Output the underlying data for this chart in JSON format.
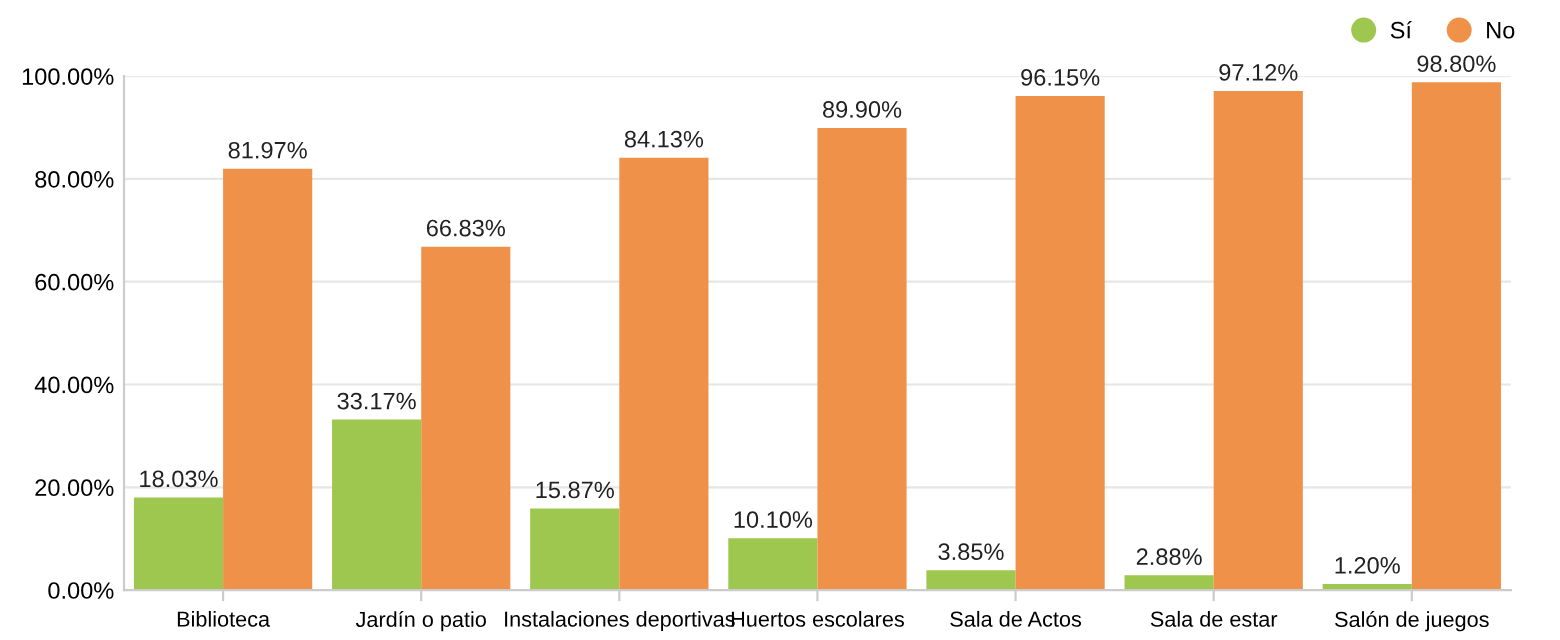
{
  "chart_data": {
    "type": "bar",
    "categories": [
      "Biblioteca",
      "Jardín o patio",
      "Instalaciones deportivas",
      "Huertos escolares",
      "Sala de Actos",
      "Sala de estar",
      "Salón de juegos"
    ],
    "series": [
      {
        "name": "Sí",
        "color": "#9dc74f",
        "values": [
          18.03,
          33.17,
          15.87,
          10.1,
          3.85,
          2.88,
          1.2
        ],
        "value_labels": [
          "18.03%",
          "33.17%",
          "15.87%",
          "10.10%",
          "3.85%",
          "2.88%",
          "1.20%"
        ]
      },
      {
        "name": "No",
        "color": "#f0914a",
        "values": [
          81.97,
          66.83,
          84.13,
          89.9,
          96.15,
          97.12,
          98.8
        ],
        "value_labels": [
          "81.97%",
          "66.83%",
          "84.13%",
          "89.90%",
          "96.15%",
          "97.12%",
          "98.80%"
        ]
      }
    ],
    "ylim": [
      0,
      100
    ],
    "yticks": [
      {
        "value": 0,
        "label": "0.00%"
      },
      {
        "value": 20,
        "label": "20.00%"
      },
      {
        "value": 40,
        "label": "40.00%"
      },
      {
        "value": 60,
        "label": "60.00%"
      },
      {
        "value": 80,
        "label": "80.00%"
      },
      {
        "value": 100,
        "label": "100.00%"
      }
    ],
    "grid": "y",
    "legend": "top right",
    "marker": "circle"
  }
}
